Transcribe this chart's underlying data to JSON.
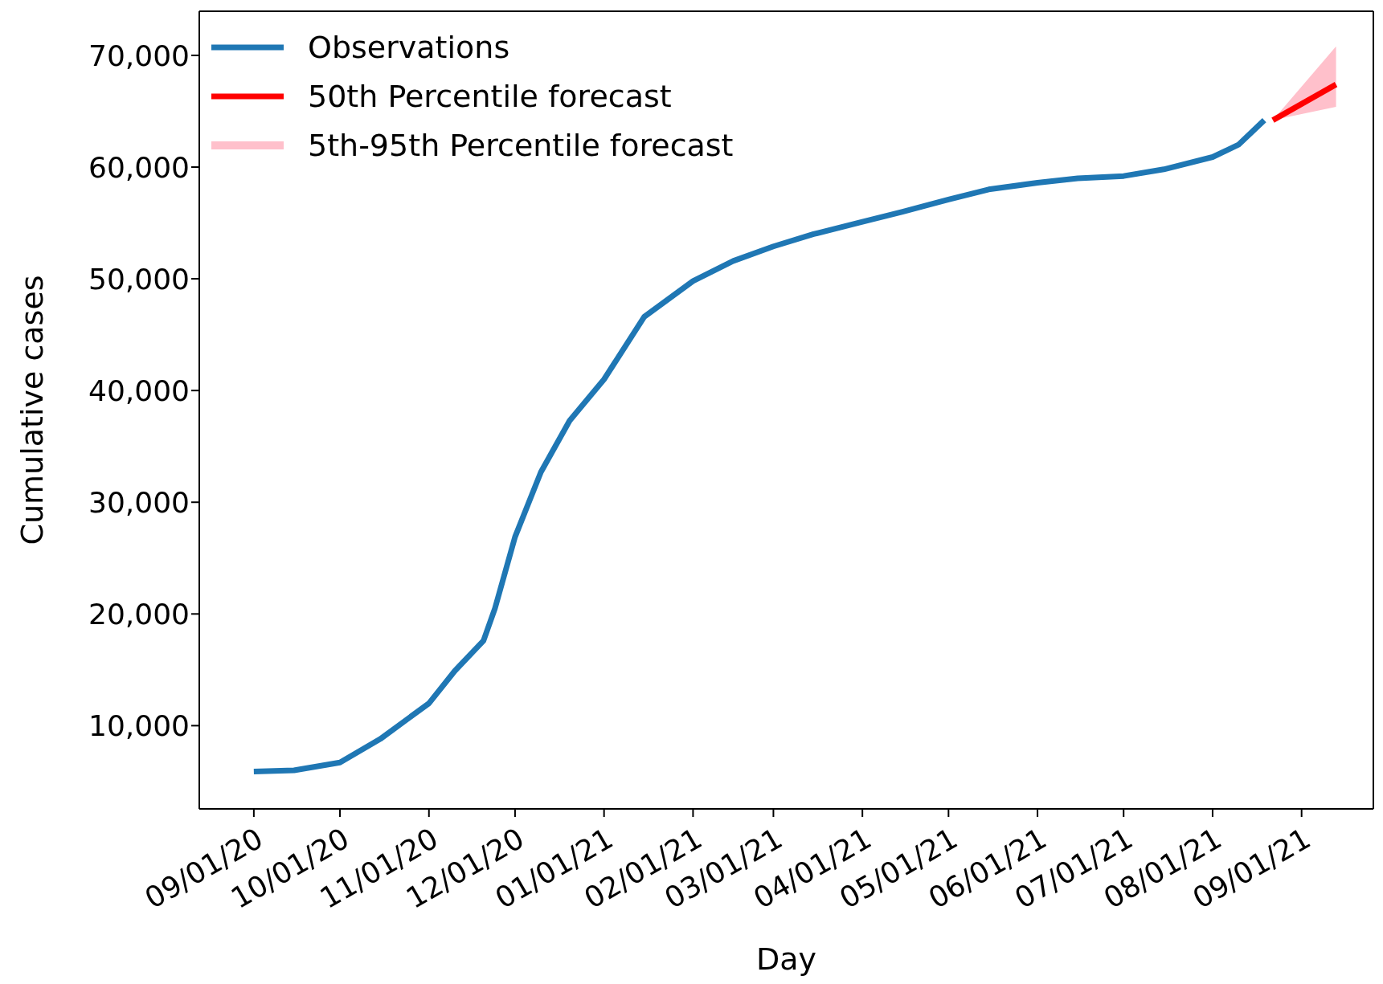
{
  "chart_data": {
    "type": "line",
    "xlabel": "Day",
    "ylabel": "Cumulative cases",
    "xlim": [
      "2020-08-13",
      "2021-09-26"
    ],
    "ylim": [
      2550,
      73950
    ],
    "xticks": [
      {
        "value": "2020-09-01",
        "label": "09/01/20"
      },
      {
        "value": "2020-10-01",
        "label": "10/01/20"
      },
      {
        "value": "2020-11-01",
        "label": "11/01/20"
      },
      {
        "value": "2020-12-01",
        "label": "12/01/20"
      },
      {
        "value": "2021-01-01",
        "label": "01/01/21"
      },
      {
        "value": "2021-02-01",
        "label": "02/01/21"
      },
      {
        "value": "2021-03-01",
        "label": "03/01/21"
      },
      {
        "value": "2021-04-01",
        "label": "04/01/21"
      },
      {
        "value": "2021-05-01",
        "label": "05/01/21"
      },
      {
        "value": "2021-06-01",
        "label": "06/01/21"
      },
      {
        "value": "2021-07-01",
        "label": "07/01/21"
      },
      {
        "value": "2021-08-01",
        "label": "08/01/21"
      },
      {
        "value": "2021-09-01",
        "label": "09/01/21"
      }
    ],
    "yticks": [
      {
        "value": 10000,
        "label": "10,000"
      },
      {
        "value": 20000,
        "label": "20,000"
      },
      {
        "value": 30000,
        "label": "30,000"
      },
      {
        "value": 40000,
        "label": "40,000"
      },
      {
        "value": 50000,
        "label": "50,000"
      },
      {
        "value": 60000,
        "label": "60,000"
      },
      {
        "value": 70000,
        "label": "70,000"
      }
    ],
    "grid": false,
    "legend": "top left",
    "marker": "none",
    "line_style": "solid",
    "series": [
      {
        "name": "Observations",
        "color": "#1f77b4",
        "x": [
          "2020-09-01",
          "2020-09-15",
          "2020-10-01",
          "2020-10-15",
          "2020-11-01",
          "2020-11-10",
          "2020-11-20",
          "2020-11-24",
          "2020-12-01",
          "2020-12-10",
          "2020-12-20",
          "2021-01-01",
          "2021-01-15",
          "2021-02-01",
          "2021-02-15",
          "2021-03-01",
          "2021-03-15",
          "2021-04-01",
          "2021-04-15",
          "2021-05-01",
          "2021-05-15",
          "2021-06-01",
          "2021-06-15",
          "2021-07-01",
          "2021-07-15",
          "2021-08-01",
          "2021-08-10",
          "2021-08-19"
        ],
        "values": [
          5900,
          6000,
          6700,
          8800,
          12000,
          14900,
          17600,
          20500,
          26900,
          32700,
          37300,
          41000,
          46600,
          49800,
          51600,
          52900,
          54000,
          55100,
          56000,
          57100,
          58000,
          58600,
          59000,
          59200,
          59800,
          60900,
          62000,
          64200
        ]
      },
      {
        "name": "50th Percentile forecast",
        "color": "#ff0000",
        "x": [
          "2021-08-22",
          "2021-09-13"
        ],
        "values": [
          64200,
          67400
        ],
        "lower": [
          64200,
          65400
        ],
        "upper": [
          64200,
          70800
        ]
      }
    ],
    "annotations": [
      "5th-95th Percentile forecast"
    ]
  }
}
